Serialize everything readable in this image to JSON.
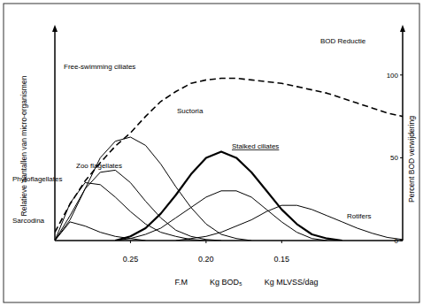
{
  "chart_data": {
    "type": "line",
    "xlabel": "F.M          Kg BOD₅          Kg MLVSS/dag",
    "ylabel": "Relatieve aantallen van micro-organismen",
    "y2label": "Percent BOD verwijdering",
    "x": [
      0.3,
      0.29,
      0.28,
      0.27,
      0.26,
      0.25,
      0.24,
      0.23,
      0.22,
      0.21,
      0.2,
      0.19,
      0.18,
      0.17,
      0.16,
      0.15,
      0.14,
      0.13,
      0.12,
      0.11,
      0.1,
      0.09,
      0.08,
      0.07
    ],
    "xlim": [
      0.3,
      0.07
    ],
    "xticks": [
      0.25,
      {
        "value": 0.2,
        "label": "0.20"
      },
      0.15
    ],
    "ylim": [
      0,
      100
    ],
    "yticks": [],
    "y2lim": [
      0,
      125
    ],
    "y2ticks": [
      0,
      50,
      100
    ],
    "grid": false,
    "series": [
      {
        "name": "Sarcodina",
        "color": "#000000",
        "line_style": "solid",
        "values": [
          0,
          9,
          7,
          4,
          2,
          1,
          0,
          null,
          null,
          null,
          null,
          null,
          null,
          null,
          null,
          null,
          null,
          null,
          null,
          null,
          null,
          null,
          null,
          null
        ]
      },
      {
        "name": "Phytoflagellates",
        "color": "#000000",
        "line_style": "solid",
        "values": [
          0,
          18,
          28,
          27,
          21,
          14,
          8,
          4,
          2,
          0.5,
          0,
          null,
          null,
          null,
          null,
          null,
          null,
          null,
          null,
          null,
          null,
          null,
          null,
          null
        ]
      },
      {
        "name": "Zoo flagellates",
        "color": "#000000",
        "line_style": "solid",
        "values": [
          0,
          12,
          25,
          33,
          34,
          28,
          19,
          11,
          5,
          2,
          0.5,
          0,
          null,
          null,
          null,
          null,
          null,
          null,
          null,
          null,
          null,
          null,
          null,
          null
        ]
      },
      {
        "name": "Free-swimming ciliates",
        "color": "#000000",
        "line_style": "solid",
        "values": [
          0,
          10,
          25,
          40,
          48,
          50,
          46,
          37,
          26,
          16,
          8,
          3,
          1,
          0,
          null,
          null,
          null,
          null,
          null,
          null,
          null,
          null,
          null,
          null
        ]
      },
      {
        "name": "Suctoria",
        "color": "#000000",
        "line_style": "solid",
        "values": [
          null,
          null,
          null,
          null,
          0,
          1,
          3,
          6,
          11,
          16,
          21,
          24,
          24,
          21,
          15,
          9,
          4,
          1,
          0,
          null,
          null,
          null,
          null,
          null
        ]
      },
      {
        "name": "Stalked ciliates",
        "color": "#000000",
        "line_style": "thick",
        "values": [
          null,
          null,
          null,
          null,
          0,
          2,
          6,
          13,
          22,
          32,
          40,
          43,
          40,
          33,
          24,
          15,
          8,
          3,
          1,
          0,
          null,
          null,
          null,
          null
        ]
      },
      {
        "name": "Rotifers",
        "color": "#000000",
        "line_style": "solid",
        "values": [
          null,
          null,
          null,
          null,
          null,
          null,
          null,
          null,
          0,
          1,
          2,
          4,
          7,
          10,
          14,
          17,
          17,
          15,
          12,
          9,
          6,
          3.5,
          1.5,
          0.5
        ]
      },
      {
        "name": "BOD Reductie",
        "color": "#000000",
        "line_style": "dashed",
        "axis": "y2",
        "values": [
          5,
          22,
          36,
          47,
          57,
          65,
          75,
          84,
          90,
          95,
          97,
          98,
          98,
          97,
          96,
          95,
          93,
          91,
          89,
          86,
          83,
          80,
          77,
          75
        ]
      }
    ]
  }
}
